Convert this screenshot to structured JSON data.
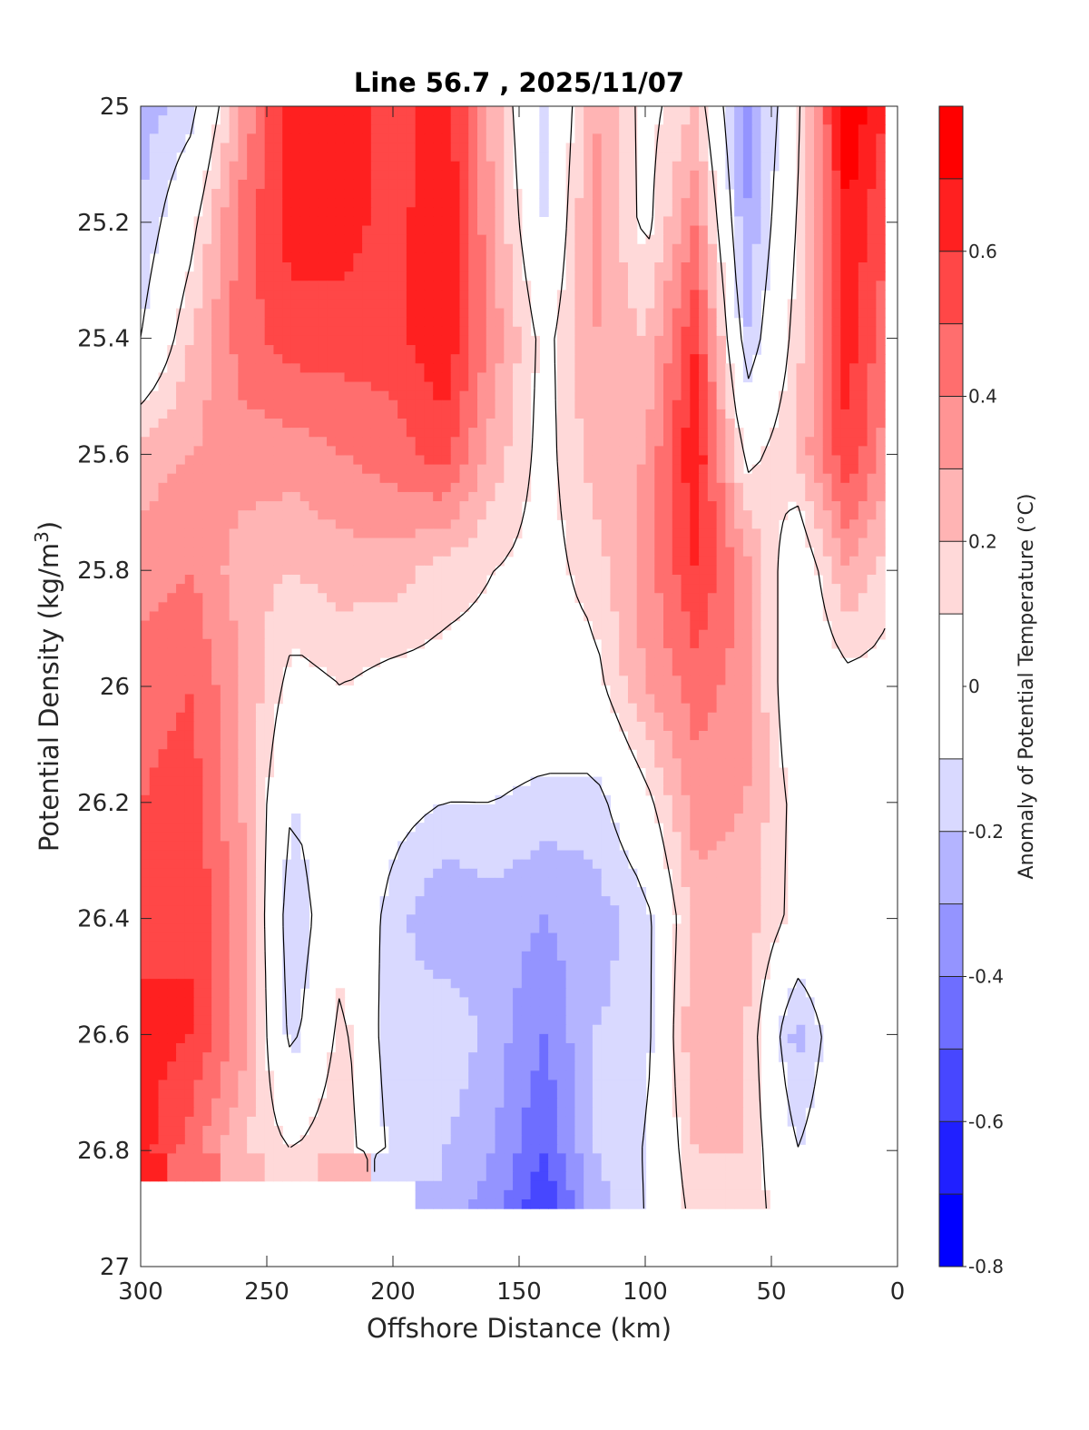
{
  "chart_data": {
    "type": "heatmap",
    "subtype": "filled-contour section",
    "title": "Line 56.7 , 2025/11/07",
    "xlabel": "Offshore Distance (km)",
    "ylabel_main": "Potential Density (kg/m",
    "ylabel_sup": "3",
    "ylabel_end": ")",
    "xlim": [
      300,
      0
    ],
    "ylim": [
      27,
      25
    ],
    "x_reversed": true,
    "y_reversed": true,
    "x_ticks": [
      300,
      250,
      200,
      150,
      100,
      50,
      0
    ],
    "x_tick_labels": [
      "300",
      "250",
      "200",
      "150",
      "100",
      "50",
      "0"
    ],
    "y_ticks": [
      25,
      25.2,
      25.4,
      25.6,
      25.8,
      26,
      26.2,
      26.4,
      26.6,
      26.8,
      27
    ],
    "y_tick_labels": [
      "25",
      "25.2",
      "25.4",
      "25.6",
      "25.8",
      "26",
      "26.2",
      "26.4",
      "26.6",
      "26.8",
      "27"
    ],
    "grid": false,
    "contour_line_levels": [
      -0.1,
      0.1
    ],
    "colorbar": {
      "label": "Anomaly of Potential Temperature (°C)",
      "limits": [
        -0.8,
        0.8
      ],
      "level_edges": [
        -0.8,
        -0.7,
        -0.6,
        -0.5,
        -0.4,
        -0.3,
        -0.2,
        -0.1,
        0.1,
        0.2,
        0.3,
        0.4,
        0.5,
        0.6,
        0.7,
        0.8
      ],
      "colors": [
        "#0000ff",
        "#2020ff",
        "#4747ff",
        "#6e6eff",
        "#9494ff",
        "#b4b4ff",
        "#d9d9ff",
        "#ffffff",
        "#ffd9d9",
        "#ffb4b4",
        "#ff9494",
        "#ff6e6e",
        "#ff4747",
        "#ff2020",
        "#ff0000"
      ],
      "tick_values": [
        -0.8,
        -0.6,
        -0.4,
        -0.2,
        0,
        0.2,
        0.4,
        0.6
      ],
      "tick_labels": [
        "-0.8",
        "-0.6",
        "-0.4",
        "-0.2",
        "0",
        "0.2",
        "0.4",
        "0.6"
      ]
    },
    "x": [
      300,
      280,
      260,
      240,
      220,
      200,
      180,
      160,
      140,
      120,
      100,
      80,
      60,
      40,
      20,
      5
    ],
    "y": [
      25.0,
      25.2,
      25.4,
      25.6,
      25.8,
      26.0,
      26.2,
      26.4,
      26.6,
      26.8,
      26.9
    ],
    "z": [
      [
        -0.25,
        -0.15,
        0.3,
        0.7,
        0.7,
        0.5,
        0.7,
        0.25,
        -0.15,
        0.3,
        0.05,
        0.2,
        -0.35,
        0.05,
        0.8,
        0.6
      ],
      [
        -0.2,
        0.05,
        0.45,
        0.65,
        0.65,
        0.55,
        0.7,
        0.3,
        -0.1,
        0.35,
        0.05,
        0.4,
        -0.3,
        0.1,
        0.7,
        0.5
      ],
      [
        -0.1,
        0.2,
        0.45,
        0.55,
        0.55,
        0.55,
        0.7,
        0.35,
        0.05,
        0.3,
        0.2,
        0.6,
        -0.2,
        0.15,
        0.65,
        0.45
      ],
      [
        0.25,
        0.3,
        0.35,
        0.35,
        0.4,
        0.45,
        0.55,
        0.25,
        0.05,
        0.25,
        0.3,
        0.7,
        0.05,
        0.2,
        0.6,
        0.35
      ],
      [
        0.35,
        0.4,
        0.25,
        0.2,
        0.25,
        0.25,
        0.15,
        0.1,
        0.05,
        0.15,
        0.35,
        0.6,
        0.35,
        -0.05,
        0.3,
        0.15
      ],
      [
        0.45,
        0.5,
        0.3,
        0.05,
        0.1,
        0.05,
        0.05,
        0.05,
        0.05,
        0.05,
        0.3,
        0.45,
        0.35,
        -0.05,
        0.05,
        0.05
      ],
      [
        0.5,
        0.55,
        0.3,
        -0.1,
        0.05,
        -0.05,
        -0.1,
        -0.1,
        -0.15,
        -0.15,
        0.05,
        0.35,
        0.3,
        0.05,
        0.05,
        0.05
      ],
      [
        0.55,
        0.6,
        0.35,
        -0.2,
        0.05,
        -0.15,
        -0.3,
        -0.25,
        -0.3,
        -0.25,
        -0.15,
        0.25,
        0.25,
        0.05,
        0.05,
        0.05
      ],
      [
        0.65,
        0.6,
        0.35,
        -0.15,
        0.15,
        -0.2,
        -0.1,
        -0.25,
        -0.4,
        -0.2,
        -0.15,
        0.3,
        0.2,
        -0.25,
        0.05,
        0.05
      ],
      [
        0.65,
        0.45,
        0.2,
        0.1,
        0.2,
        -0.15,
        -0.2,
        -0.3,
        -0.5,
        -0.2,
        -0.1,
        0.2,
        0.2,
        -0.1,
        0.05,
        0.05
      ],
      [
        null,
        null,
        null,
        null,
        null,
        null,
        -0.25,
        -0.35,
        -0.6,
        -0.25,
        -0.1,
        0.15,
        0.2,
        -0.05,
        null,
        null
      ]
    ]
  }
}
